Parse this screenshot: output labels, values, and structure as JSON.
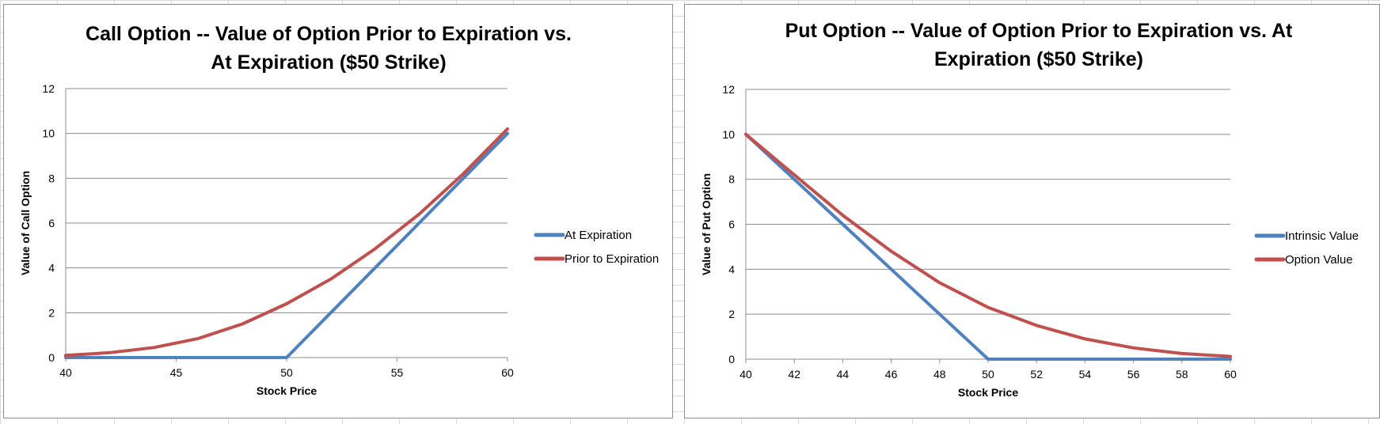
{
  "chart_data": [
    {
      "type": "line",
      "title_lines": [
        "Call Option -- Value of Option Prior to Expiration vs.",
        "At Expiration ($50 Strike)"
      ],
      "xlabel": "Stock Price",
      "ylabel": "Value of Call Option",
      "xlim": [
        40,
        60
      ],
      "ylim": [
        0,
        12
      ],
      "x_ticks": [
        40,
        45,
        50,
        55,
        60
      ],
      "y_ticks": [
        0,
        2,
        4,
        6,
        8,
        10,
        12
      ],
      "grid": true,
      "legend_position": "right",
      "series": [
        {
          "name": "At Expiration",
          "color": "#4f81bd",
          "x": [
            40,
            42,
            44,
            46,
            48,
            50,
            52,
            54,
            56,
            58,
            60
          ],
          "y": [
            0,
            0,
            0,
            0,
            0,
            0,
            2,
            4,
            6,
            8,
            10
          ]
        },
        {
          "name": "Prior to Expiration",
          "color": "#c0504d",
          "x": [
            40,
            42,
            44,
            46,
            48,
            50,
            52,
            54,
            56,
            58,
            60
          ],
          "y": [
            0.1,
            0.22,
            0.45,
            0.85,
            1.5,
            2.4,
            3.5,
            4.85,
            6.4,
            8.2,
            10.2
          ]
        }
      ]
    },
    {
      "type": "line",
      "title_lines": [
        "Put Option -- Value of Option Prior to Expiration vs. At",
        "Expiration ($50 Strike)"
      ],
      "xlabel": "Stock Price",
      "ylabel": "Value of Put Option",
      "xlim": [
        40,
        60
      ],
      "ylim": [
        0,
        12
      ],
      "x_ticks": [
        40,
        42,
        44,
        46,
        48,
        50,
        52,
        54,
        56,
        58,
        60
      ],
      "y_ticks": [
        0,
        2,
        4,
        6,
        8,
        10,
        12
      ],
      "grid": true,
      "legend_position": "right",
      "series": [
        {
          "name": "Intrinsic Value",
          "color": "#4f81bd",
          "x": [
            40,
            42,
            44,
            46,
            48,
            50,
            52,
            54,
            56,
            58,
            60
          ],
          "y": [
            10,
            8,
            6,
            4,
            2,
            0,
            0,
            0,
            0,
            0,
            0
          ]
        },
        {
          "name": "Option Value",
          "color": "#c0504d",
          "x": [
            40,
            42,
            44,
            46,
            48,
            50,
            52,
            54,
            56,
            58,
            60
          ],
          "y": [
            10.0,
            8.2,
            6.4,
            4.8,
            3.4,
            2.3,
            1.5,
            0.9,
            0.5,
            0.25,
            0.12
          ]
        }
      ]
    }
  ]
}
